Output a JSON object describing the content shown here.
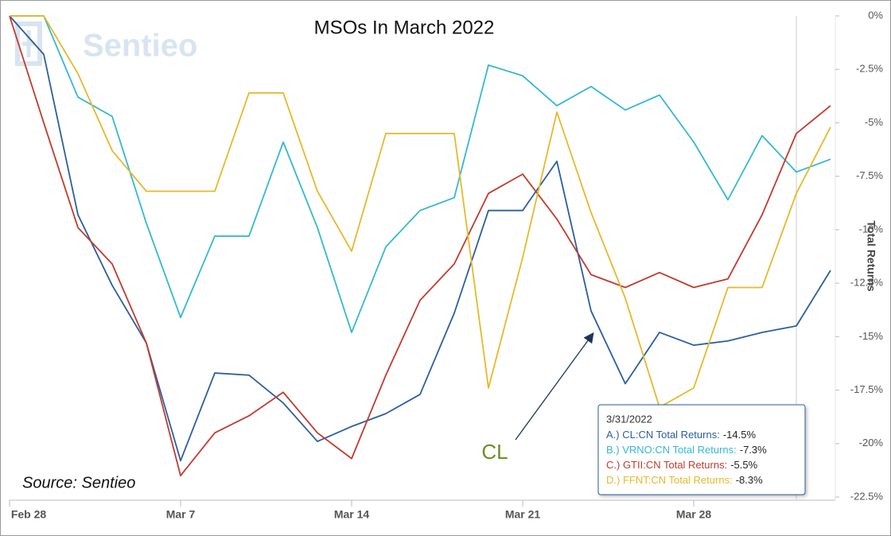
{
  "chart_data": {
    "type": "line",
    "title": "MSOs In March 2022",
    "watermark": "Sentieo",
    "source": "Source: Sentieo",
    "y_axis_label": "Total Returns",
    "annotation": "CL",
    "categories": [
      "Feb 28",
      null,
      null,
      null,
      null,
      "Mar 7",
      null,
      null,
      null,
      null,
      "Mar 14",
      null,
      null,
      null,
      null,
      "Mar 21",
      null,
      null,
      null,
      null,
      "Mar 28",
      null,
      null,
      null,
      null
    ],
    "series": [
      {
        "name": "CL:CN",
        "color": "#2b5f9e",
        "values": [
          0,
          -1.8,
          -9.3,
          -12.6,
          -15.3,
          -20.8,
          -16.7,
          -16.8,
          -18.1,
          -19.9,
          -19.2,
          -18.6,
          -17.7,
          -13.9,
          -9.1,
          -9.1,
          -6.8,
          -13.8,
          -17.2,
          -14.8,
          -15.4,
          -15.2,
          -14.8,
          -14.5,
          -11.9
        ]
      },
      {
        "name": "VRNO:CN",
        "color": "#33b9d1",
        "values": [
          0,
          0,
          -3.8,
          -4.7,
          -9.7,
          -14.1,
          -10.3,
          -10.3,
          -5.9,
          -9.9,
          -14.8,
          -10.8,
          -9.1,
          -8.5,
          -2.3,
          -2.8,
          -4.2,
          -3.3,
          -4.4,
          -3.7,
          -5.9,
          -8.6,
          -5.6,
          -7.3,
          -6.7
        ]
      },
      {
        "name": "GTII:CN",
        "color": "#c23b2e",
        "values": [
          0,
          -5.0,
          -9.9,
          -11.6,
          -15.3,
          -21.5,
          -19.5,
          -18.7,
          -17.6,
          -19.5,
          -20.7,
          -16.8,
          -13.3,
          -11.6,
          -8.3,
          -7.4,
          -9.5,
          -12.1,
          -12.7,
          -12.0,
          -12.7,
          -12.3,
          -9.3,
          -5.5,
          -4.2
        ]
      },
      {
        "name": "FFNT:CN",
        "color": "#e6b92a",
        "values": [
          0,
          0,
          -2.7,
          -6.3,
          -8.2,
          -8.2,
          -8.2,
          -3.6,
          -3.6,
          -8.2,
          -11.0,
          -5.5,
          -5.5,
          -5.5,
          -17.4,
          -11.3,
          -4.5,
          -9.2,
          -13.2,
          -18.3,
          -17.4,
          -12.7,
          -12.7,
          -8.3,
          -5.2
        ]
      }
    ],
    "ylim": [
      -22.5,
      0
    ],
    "yticks": [
      {
        "value": 0,
        "label": "0%"
      },
      {
        "value": -2.5,
        "label": "-2.5%"
      },
      {
        "value": -5,
        "label": "-5%"
      },
      {
        "value": -7.5,
        "label": "-7.5%"
      },
      {
        "value": -10,
        "label": "-10%"
      },
      {
        "value": -12.5,
        "label": "-12.5%"
      },
      {
        "value": -15,
        "label": "-15%"
      },
      {
        "value": -17.5,
        "label": "-17.5%"
      },
      {
        "value": -20,
        "label": "-20%"
      },
      {
        "value": -22.5,
        "label": "-22.5%"
      }
    ],
    "grid": false,
    "tooltip": {
      "date": "3/31/2022",
      "entries": [
        {
          "label": "A.) CL:CN Total Returns:",
          "value": "-14.5%"
        },
        {
          "label": "B.) VRNO:CN Total Returns:",
          "value": "-7.3%"
        },
        {
          "label": "C.) GTII:CN Total Returns:",
          "value": "-5.5%"
        },
        {
          "label": "D.) FFNT:CN Total Returns:",
          "value": "-8.3%"
        }
      ]
    }
  }
}
